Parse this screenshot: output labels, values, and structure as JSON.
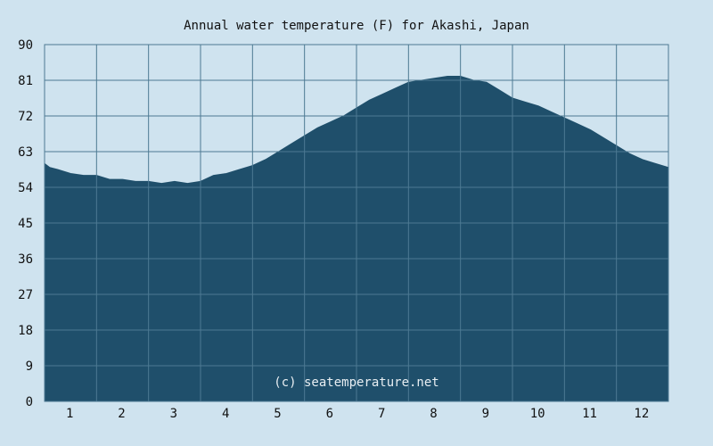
{
  "colors": {
    "background": "#cfe3ef",
    "plot_fill": "#1f4f6b",
    "plot_bg": "#cfe3ef",
    "grid": "#4d7a93",
    "text": "#111111",
    "watermark": "#e8eef2"
  },
  "chart_data": {
    "type": "area",
    "title": "Annual water temperature (F) for Akashi, Japan",
    "xlabel": "",
    "ylabel": "",
    "watermark": "(c) seatemperature.net",
    "xlim": [
      0.5,
      12.5
    ],
    "ylim": [
      0,
      90
    ],
    "grid": true,
    "legend": "none",
    "x_ticks": [
      1,
      2,
      3,
      4,
      5,
      6,
      7,
      8,
      9,
      10,
      11,
      12
    ],
    "x_tick_labels": [
      "1",
      "2",
      "3",
      "4",
      "5",
      "6",
      "7",
      "8",
      "9",
      "10",
      "11",
      "12"
    ],
    "y_ticks": [
      0,
      9,
      18,
      27,
      36,
      45,
      54,
      63,
      72,
      81,
      90
    ],
    "y_tick_labels": [
      "0",
      "9",
      "18",
      "27",
      "36",
      "45",
      "54",
      "63",
      "72",
      "81",
      "90"
    ],
    "series": [
      {
        "x": [
          0.5,
          0.6,
          0.75,
          1.0,
          1.25,
          1.5,
          1.75,
          2.0,
          2.25,
          2.5,
          2.75,
          3.0,
          3.25,
          3.5,
          3.75,
          4.0,
          4.25,
          4.5,
          4.75,
          5.0,
          5.25,
          5.5,
          5.75,
          6.0,
          6.25,
          6.5,
          6.75,
          7.0,
          7.25,
          7.5,
          7.75,
          8.0,
          8.25,
          8.5,
          8.75,
          9.0,
          9.25,
          9.5,
          9.75,
          10.0,
          10.25,
          10.5,
          10.75,
          11.0,
          11.25,
          11.5,
          11.75,
          12.0,
          12.25,
          12.5
        ],
        "values": [
          60,
          59,
          58.5,
          57.5,
          57,
          57,
          56,
          56,
          55.5,
          55.5,
          55,
          55.5,
          55,
          55.5,
          57,
          57.5,
          58.5,
          59.5,
          61,
          63,
          65,
          67,
          69,
          70.5,
          72,
          74,
          76,
          77.5,
          79,
          80.5,
          81,
          81.5,
          82,
          82,
          81,
          80.5,
          78.5,
          76.5,
          75.5,
          74.5,
          73,
          71.5,
          70,
          68.5,
          66.5,
          64.5,
          62.5,
          61,
          60,
          59
        ]
      }
    ]
  }
}
